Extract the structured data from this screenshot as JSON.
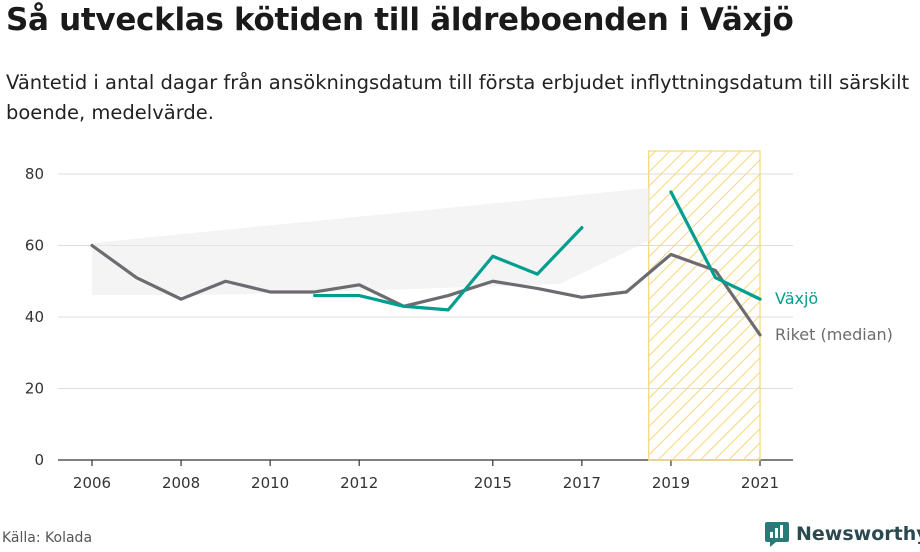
{
  "title": "Så utvecklas kötiden till äldreboenden i Växjö",
  "subtitle": "Väntetid i antal dagar från ansökningsdatum till första erbjudet inflyttningsdatum till särskilt boende, medelvärde.",
  "source": "Källa: Kolada",
  "brand": "Newsworthy",
  "colors": {
    "vaxjo": "#009e8e",
    "riket": "#6e6b70",
    "highlight": "#f6d77a",
    "grid": "#dddddd",
    "brand": "#2b7a7a"
  },
  "chart_data": {
    "type": "line",
    "x_ticks": [
      2006,
      2008,
      2010,
      2012,
      2015,
      2017,
      2019,
      2021
    ],
    "y_ticks": [
      0,
      20,
      40,
      60,
      80
    ],
    "xlim": [
      2006,
      2021
    ],
    "ylim": [
      0,
      80
    ],
    "highlight_range": [
      2018.5,
      2021
    ],
    "series": [
      {
        "name": "Växjö",
        "key": "vaxjo",
        "segments": [
          [
            [
              2011,
              46
            ],
            [
              2012,
              46
            ],
            [
              2013,
              43
            ],
            [
              2014,
              42
            ],
            [
              2015,
              57
            ],
            [
              2016,
              52
            ],
            [
              2017,
              65
            ]
          ],
          [
            [
              2019,
              75
            ],
            [
              2020,
              51
            ],
            [
              2021,
              45
            ]
          ]
        ]
      },
      {
        "name": "Riket (median)",
        "key": "riket",
        "segments": [
          [
            [
              2006,
              60
            ],
            [
              2007,
              51
            ],
            [
              2008,
              45
            ],
            [
              2009,
              50
            ],
            [
              2010,
              47
            ],
            [
              2011,
              47
            ],
            [
              2012,
              49
            ],
            [
              2013,
              43
            ],
            [
              2014,
              46
            ],
            [
              2015,
              50
            ],
            [
              2016,
              48
            ],
            [
              2017,
              45.5
            ],
            [
              2018,
              47
            ],
            [
              2019,
              57.5
            ],
            [
              2020,
              53
            ],
            [
              2021,
              35
            ]
          ]
        ]
      }
    ]
  }
}
